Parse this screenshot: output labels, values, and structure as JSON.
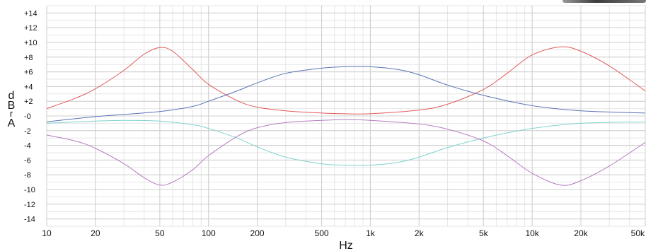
{
  "chart_data": {
    "type": "line",
    "xscale": "log",
    "xlim": [
      10,
      50000
    ],
    "ylim": [
      -15,
      15
    ],
    "xlabel": "Hz",
    "ylabel": "dBrA",
    "grid": true,
    "x_ticks": [
      {
        "v": 10,
        "label": "10"
      },
      {
        "v": 20,
        "label": "20"
      },
      {
        "v": 50,
        "label": "50"
      },
      {
        "v": 100,
        "label": "100"
      },
      {
        "v": 200,
        "label": "200"
      },
      {
        "v": 500,
        "label": "500"
      },
      {
        "v": 1000,
        "label": "1k"
      },
      {
        "v": 2000,
        "label": "2k"
      },
      {
        "v": 5000,
        "label": "5k"
      },
      {
        "v": 10000,
        "label": "10k"
      },
      {
        "v": 20000,
        "label": "20k"
      },
      {
        "v": 50000,
        "label": "50k"
      }
    ],
    "y_ticks": [
      {
        "v": 14,
        "label": "+14"
      },
      {
        "v": 12,
        "label": "+12"
      },
      {
        "v": 10,
        "label": "+10"
      },
      {
        "v": 8,
        "label": "+8"
      },
      {
        "v": 6,
        "label": "+6"
      },
      {
        "v": 4,
        "label": "+4"
      },
      {
        "v": 2,
        "label": "+2"
      },
      {
        "v": 0,
        "label": "-0"
      },
      {
        "v": -2,
        "label": "-2"
      },
      {
        "v": -4,
        "label": "-4"
      },
      {
        "v": -6,
        "label": "-6"
      },
      {
        "v": -8,
        "label": "-8"
      },
      {
        "v": -10,
        "label": "-10"
      },
      {
        "v": -12,
        "label": "-12"
      },
      {
        "v": -14,
        "label": "-14"
      }
    ],
    "series": [
      {
        "color": "#e05a5a",
        "x": [
          10,
          15,
          20,
          30,
          40,
          50,
          60,
          80,
          100,
          150,
          200,
          300,
          500,
          700,
          1000,
          2000,
          3000,
          5000,
          7000,
          10000,
          15000,
          20000,
          30000,
          50000
        ],
        "y": [
          1.0,
          2.4,
          3.7,
          6.2,
          8.4,
          9.3,
          8.8,
          6.3,
          4.3,
          2.1,
          1.2,
          0.7,
          0.4,
          0.3,
          0.3,
          0.8,
          1.6,
          3.6,
          5.8,
          8.3,
          9.4,
          8.8,
          6.8,
          3.4
        ]
      },
      {
        "color": "#5a72b8",
        "x": [
          10,
          20,
          50,
          80,
          100,
          150,
          200,
          300,
          500,
          700,
          1000,
          1500,
          2000,
          3000,
          5000,
          10000,
          20000,
          50000
        ],
        "y": [
          -0.8,
          -0.1,
          0.6,
          1.3,
          2.0,
          3.4,
          4.5,
          5.8,
          6.5,
          6.7,
          6.7,
          6.3,
          5.6,
          4.2,
          2.8,
          1.4,
          0.7,
          0.4
        ]
      },
      {
        "color": "#7fd3cf",
        "x": [
          10,
          20,
          30,
          50,
          80,
          100,
          150,
          200,
          300,
          500,
          700,
          1000,
          1500,
          2000,
          3000,
          5000,
          10000,
          20000,
          50000
        ],
        "y": [
          -1.0,
          -0.7,
          -0.6,
          -0.7,
          -1.2,
          -1.7,
          -3.0,
          -4.2,
          -5.6,
          -6.5,
          -6.7,
          -6.7,
          -6.3,
          -5.6,
          -4.3,
          -3.0,
          -1.7,
          -1.0,
          -0.8
        ]
      },
      {
        "color": "#b57cc0",
        "x": [
          10,
          15,
          20,
          30,
          40,
          50,
          60,
          80,
          100,
          150,
          200,
          300,
          500,
          700,
          1000,
          2000,
          3000,
          5000,
          7000,
          10000,
          15000,
          20000,
          30000,
          50000
        ],
        "y": [
          -2.6,
          -3.4,
          -4.4,
          -6.5,
          -8.4,
          -9.4,
          -9.0,
          -7.3,
          -5.4,
          -2.8,
          -1.6,
          -0.9,
          -0.6,
          -0.5,
          -0.6,
          -1.1,
          -1.8,
          -3.4,
          -5.4,
          -7.8,
          -9.4,
          -8.8,
          -6.8,
          -3.6
        ]
      }
    ]
  }
}
